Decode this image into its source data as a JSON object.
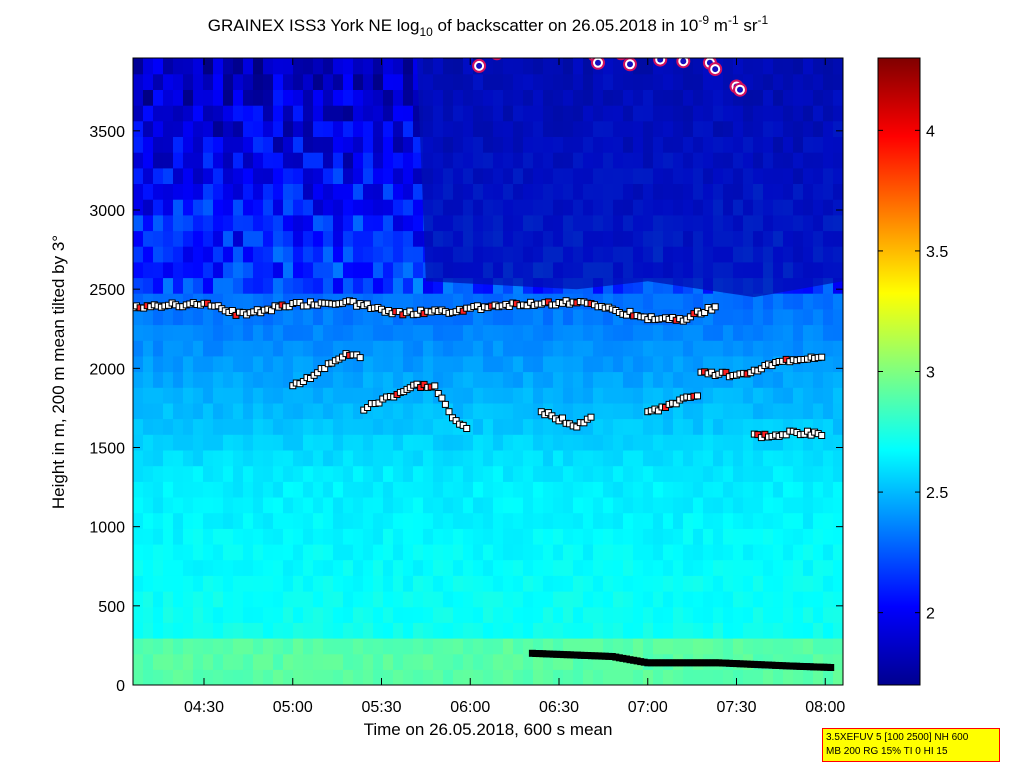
{
  "chart_data": {
    "type": "heatmap",
    "title_parts": {
      "prefix": "GRAINEX ISS3 York NE log",
      "sub": "10",
      "middle": " of backscatter on 26.05.2018 in 10",
      "sup1": "-9",
      "after_sup1": " m",
      "sup2": "-1",
      "after_sup2": " sr",
      "sup3": "-1"
    },
    "xlabel": "Time on 26.05.2018, 600 s mean",
    "ylabel": "Height in m, 200 m mean tilted by 3°",
    "x_range_hours": [
      4.1,
      8.1
    ],
    "xticks": [
      {
        "value": 4.5,
        "label": "04:30"
      },
      {
        "value": 5.0,
        "label": "05:00"
      },
      {
        "value": 5.5,
        "label": "05:30"
      },
      {
        "value": 6.0,
        "label": "06:00"
      },
      {
        "value": 6.5,
        "label": "06:30"
      },
      {
        "value": 7.0,
        "label": "07:00"
      },
      {
        "value": 7.5,
        "label": "07:30"
      },
      {
        "value": 8.0,
        "label": "08:00"
      }
    ],
    "ylim": [
      0,
      3960
    ],
    "yticks": [
      0,
      500,
      1000,
      1500,
      2000,
      2500,
      3000,
      3500
    ],
    "colorbar": {
      "range": [
        1.7,
        4.3
      ],
      "ticks": [
        2,
        2.5,
        3,
        3.5,
        4
      ],
      "colormap": "jet"
    },
    "layers": {
      "low_dark_band": [
        [
          5.0,
          3950
        ],
        [
          5.7,
          3950
        ],
        [
          5.75,
          2550
        ],
        [
          6.6,
          2500
        ],
        [
          7.0,
          2550
        ],
        [
          7.6,
          2450
        ],
        [
          8.1,
          2550
        ],
        [
          8.1,
          3960
        ]
      ],
      "aerosol_base_value": 2.72,
      "surface_value": 2.9
    },
    "layer_heights": [
      {
        "name": "upper-layer",
        "points": [
          [
            4.1,
            2390
          ],
          [
            4.5,
            2410
          ],
          [
            4.7,
            2340
          ],
          [
            5.0,
            2400
          ],
          [
            5.3,
            2420
          ],
          [
            5.6,
            2350
          ],
          [
            5.9,
            2360
          ],
          [
            6.0,
            2380
          ],
          [
            6.2,
            2400
          ],
          [
            6.4,
            2410
          ],
          [
            6.6,
            2420
          ],
          [
            6.8,
            2370
          ],
          [
            7.0,
            2320
          ],
          [
            7.2,
            2310
          ],
          [
            7.4,
            2400
          ]
        ]
      },
      {
        "name": "rising-layer-1",
        "points": [
          [
            5.0,
            1900
          ],
          [
            5.1,
            1940
          ],
          [
            5.2,
            2030
          ],
          [
            5.3,
            2080
          ],
          [
            5.4,
            2070
          ]
        ]
      },
      {
        "name": "rising-layer-2",
        "points": [
          [
            5.4,
            1740
          ],
          [
            5.55,
            1820
          ],
          [
            5.7,
            1890
          ],
          [
            5.8,
            1880
          ],
          [
            5.9,
            1680
          ],
          [
            6.0,
            1620
          ]
        ]
      },
      {
        "name": "mid-layer-1",
        "points": [
          [
            6.4,
            1730
          ],
          [
            6.5,
            1680
          ],
          [
            6.6,
            1640
          ],
          [
            6.7,
            1700
          ]
        ]
      },
      {
        "name": "mid-layer-2",
        "points": [
          [
            7.3,
            1970
          ],
          [
            7.5,
            1960
          ],
          [
            7.8,
            2050
          ],
          [
            8.0,
            2080
          ]
        ]
      },
      {
        "name": "mid-layer-3",
        "points": [
          [
            7.0,
            1720
          ],
          [
            7.2,
            1800
          ],
          [
            7.3,
            1820
          ]
        ]
      },
      {
        "name": "mid-layer-4",
        "points": [
          [
            7.6,
            1570
          ],
          [
            7.8,
            1590
          ],
          [
            8.0,
            1590
          ]
        ]
      },
      {
        "name": "surface-layer",
        "points": [
          [
            6.35,
            200
          ],
          [
            6.8,
            180
          ],
          [
            7.0,
            140
          ],
          [
            7.4,
            140
          ],
          [
            7.8,
            120
          ],
          [
            8.05,
            110
          ]
        ]
      }
    ],
    "cloud_points": [
      [
        6.05,
        3910
      ],
      [
        6.15,
        3990
      ],
      [
        6.7,
        3980
      ],
      [
        6.72,
        3930
      ],
      [
        6.85,
        3990
      ],
      [
        6.9,
        3920
      ],
      [
        7.07,
        3950
      ],
      [
        7.2,
        3940
      ],
      [
        7.35,
        3930
      ],
      [
        7.38,
        3890
      ],
      [
        7.5,
        3780
      ],
      [
        7.52,
        3760
      ]
    ]
  },
  "info_box": {
    "line1": "3.5XEFUV 5 [100 2500] NH 600",
    "line2": "MB 200 RG 15% TI 0 HI 15"
  }
}
